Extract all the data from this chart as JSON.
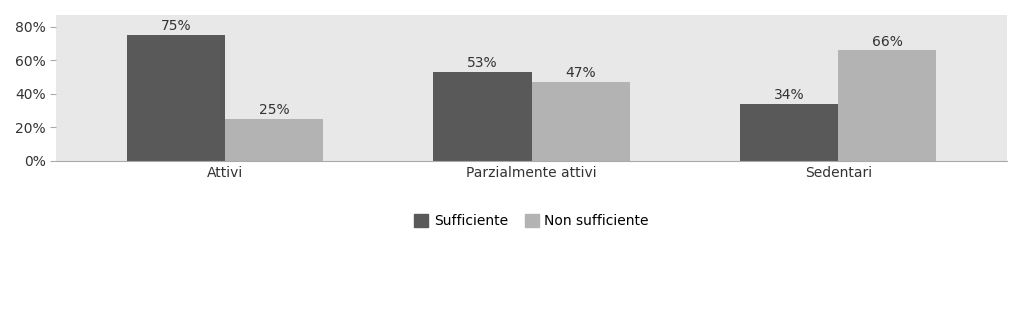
{
  "categories": [
    "Attivi",
    "Parzialmente attivi",
    "Sedentari"
  ],
  "series": [
    {
      "name": "Sufficiente",
      "values": [
        75,
        53,
        34
      ],
      "color": "#595959"
    },
    {
      "name": "Non sufficiente",
      "values": [
        25,
        47,
        66
      ],
      "color": "#b3b3b3"
    }
  ],
  "ylim": [
    0,
    87
  ],
  "yticks": [
    0,
    20,
    40,
    60,
    80
  ],
  "ytick_labels": [
    "0%",
    "20%",
    "40%",
    "60%",
    "80%"
  ],
  "bar_width": 0.32,
  "background_color": "#ffffff",
  "plot_bg_color": "#e8e8e8",
  "tick_fontsize": 10,
  "legend_fontsize": 10,
  "annotation_fontsize": 10,
  "category_fontsize": 10
}
